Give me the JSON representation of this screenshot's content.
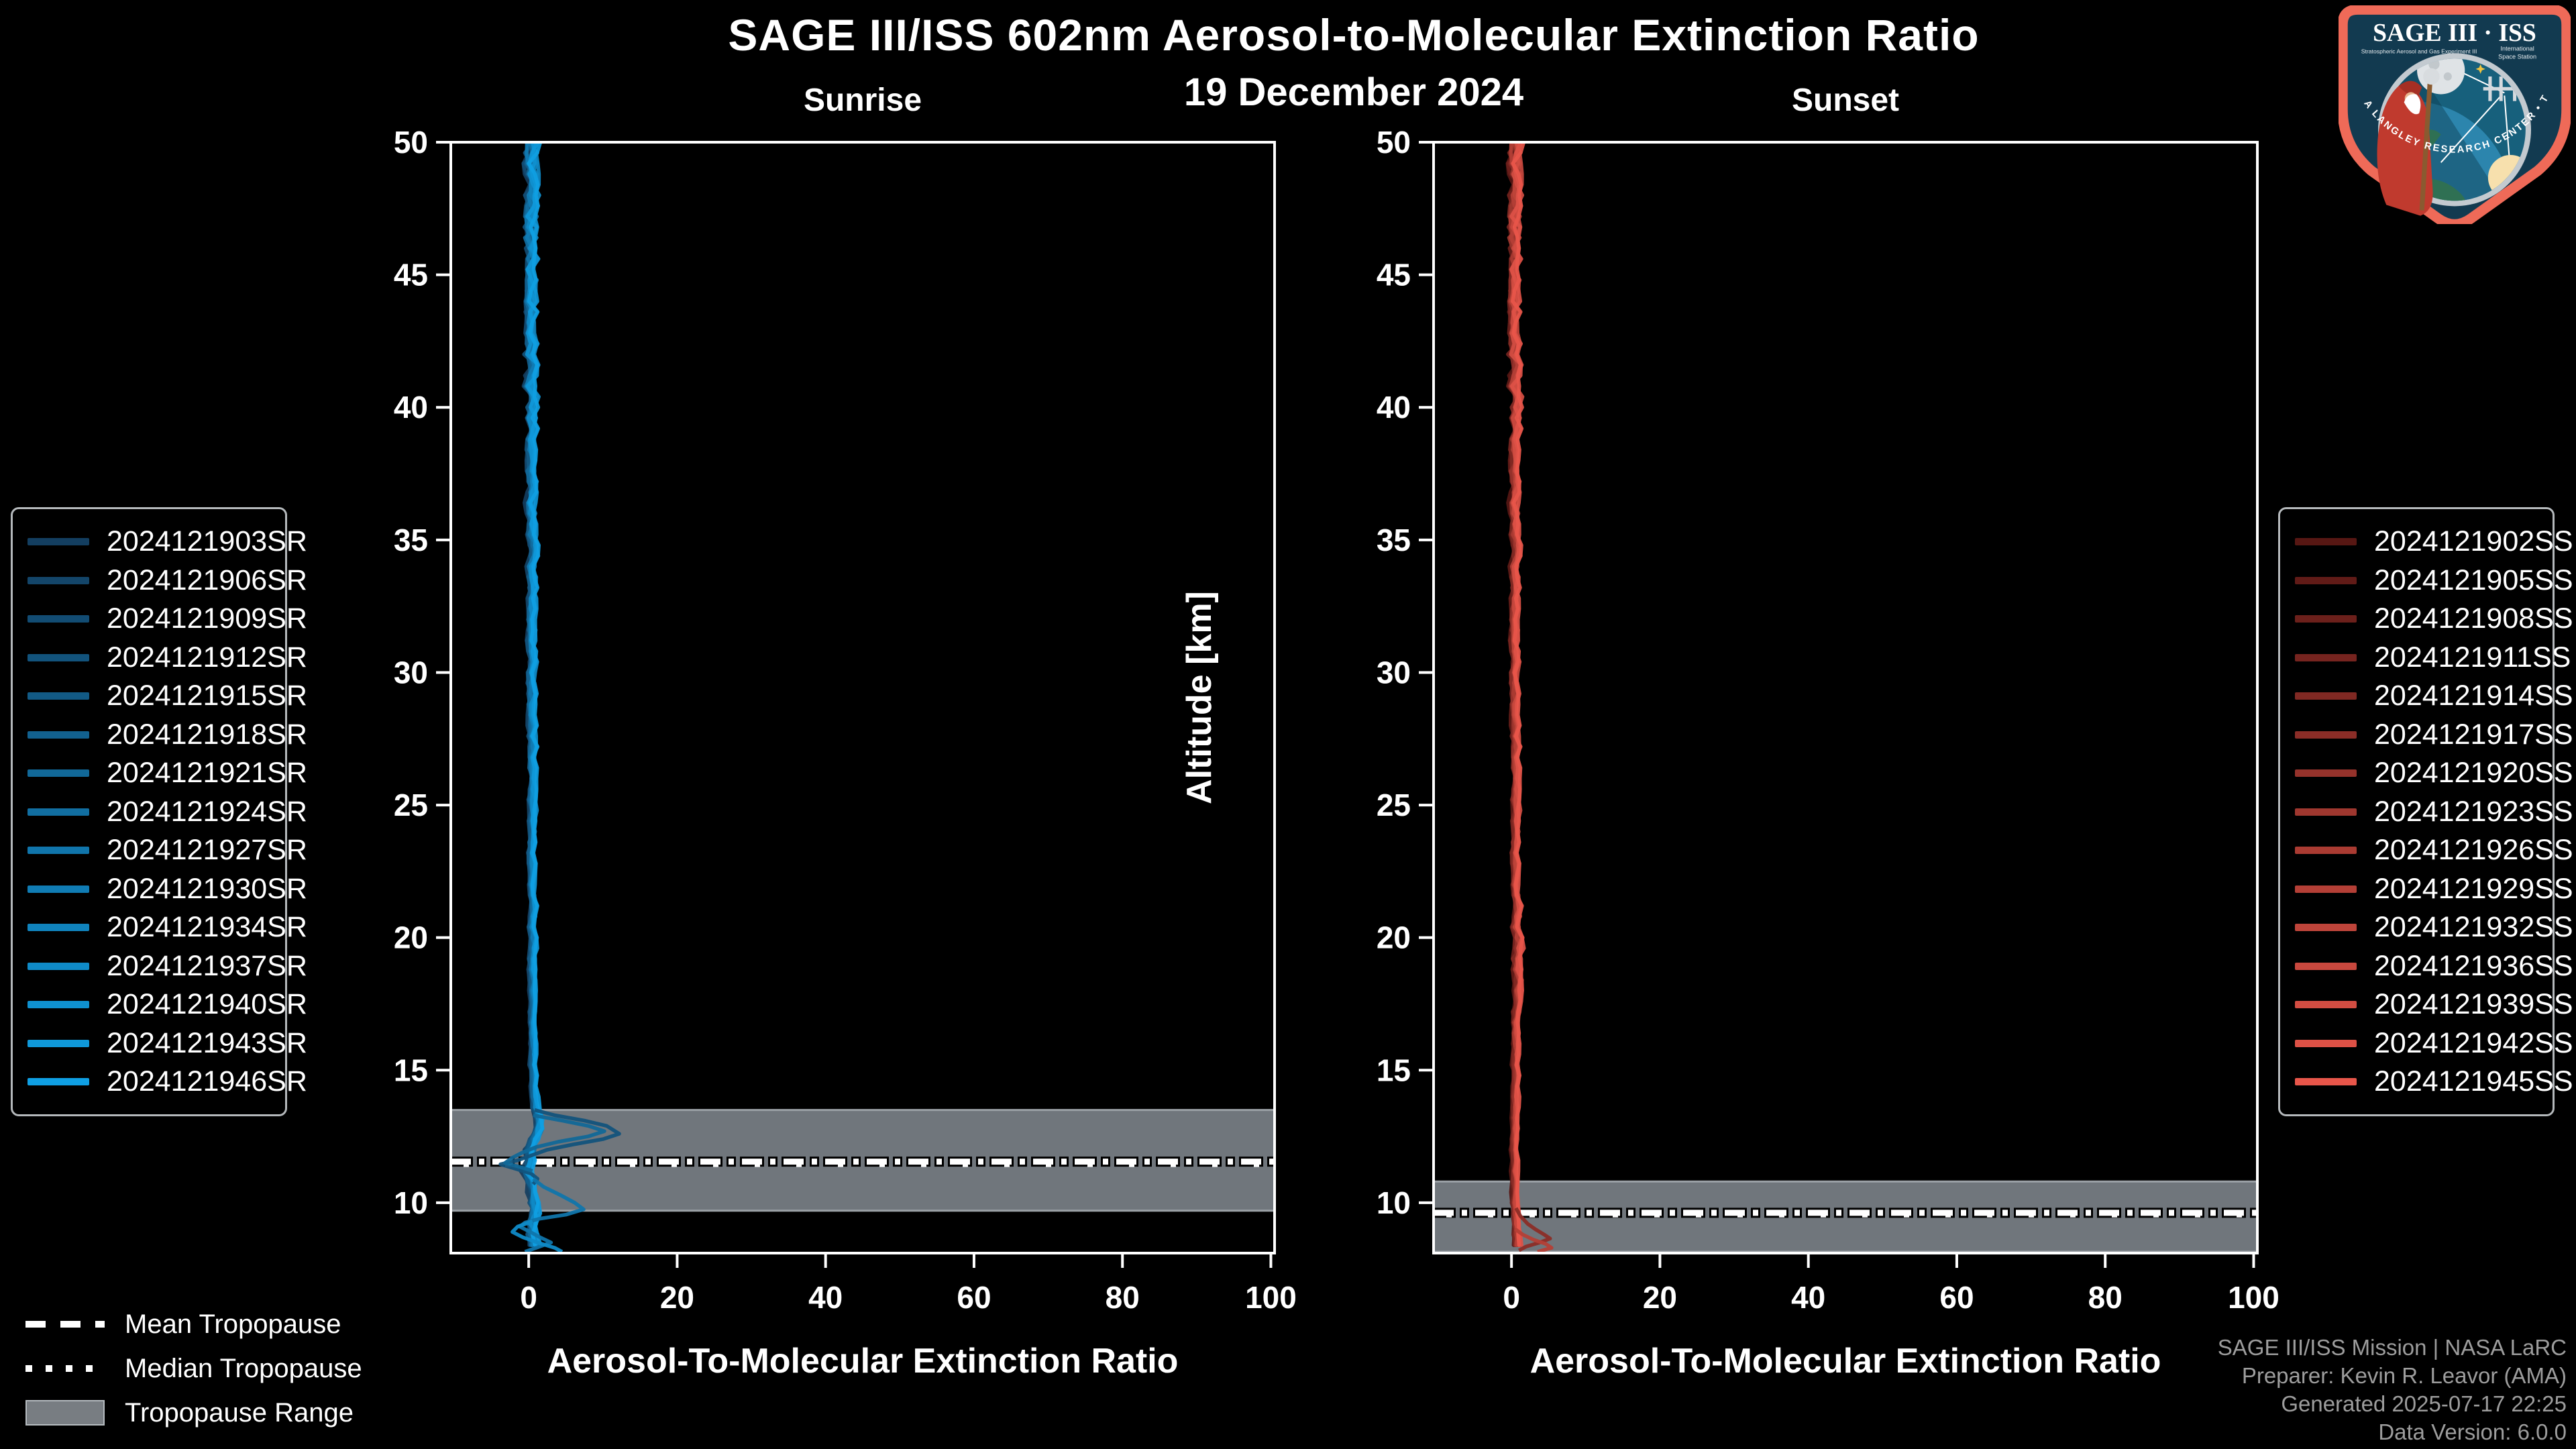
{
  "header": {
    "title": "SAGE III/ISS 602nm Aerosol-to-Molecular Extinction Ratio",
    "date": "19 December 2024"
  },
  "tropopause_legend": {
    "mean": "Mean Tropopause",
    "median": "Median Tropopause",
    "range": "Tropopause Range"
  },
  "credits": {
    "line1": "SAGE III/ISS Mission | NASA LaRC",
    "line2": "Preparer: Kevin R. Leavor (AMA)",
    "line3": "Generated 2025-07-17 22:25",
    "line4": "Data Version: 6.0.0"
  },
  "logo": {
    "title": "SAGE III · ISS",
    "subtitle_left": "Stratospheric Aerosol and Gas Experiment III",
    "subtitle_right_line1": "International",
    "subtitle_right_line2": "Space Station",
    "ring_text": "BALL • NASA LANGLEY RESEARCH CENTER • TAS-I • ESA",
    "colors": {
      "border": "#ef6a58",
      "field": "#123a50",
      "sky": "#17607c",
      "ring": "#c3cad0",
      "earth_ocean": "#2c85ad",
      "earth_land": "#4b9a55",
      "sun": "#f7e0ad",
      "moon": "#dfe3e6",
      "robe": "#c03a2e"
    }
  },
  "chart_data": [
    {
      "type": "line",
      "panel": "sunrise",
      "title": "Sunrise",
      "xlabel": "Aerosol-To-Molecular Extinction Ratio",
      "ylabel": "Altitude [km]",
      "xlim": [
        -10.5,
        100.5
      ],
      "ylim": [
        8.1,
        50
      ],
      "xticks": [
        0,
        20,
        40,
        60,
        80,
        100
      ],
      "yticks": [
        10,
        15,
        20,
        25,
        30,
        35,
        40,
        45,
        50
      ],
      "grid": false,
      "legend_position": "outside-left",
      "line_color_range": [
        "#133e60",
        "#0f9fe3"
      ],
      "series": [
        {
          "label": "2024121903SR",
          "color": "#133e60"
        },
        {
          "label": "2024121906SR",
          "color": "#134569"
        },
        {
          "label": "2024121909SR",
          "color": "#124c73"
        },
        {
          "label": "2024121912SR",
          "color": "#12537c"
        },
        {
          "label": "2024121915SR",
          "color": "#125a85"
        },
        {
          "label": "2024121918SR",
          "color": "#12618f"
        },
        {
          "label": "2024121921SR",
          "color": "#116898"
        },
        {
          "label": "2024121924SR",
          "color": "#116ea1"
        },
        {
          "label": "2024121927SR",
          "color": "#1075ab"
        },
        {
          "label": "2024121930SR",
          "color": "#107cb4"
        },
        {
          "label": "2024121934SR",
          "color": "#1083bd"
        },
        {
          "label": "2024121937SR",
          "color": "#0f8ac7"
        },
        {
          "label": "2024121940SR",
          "color": "#0f91d0"
        },
        {
          "label": "2024121943SR",
          "color": "#0f98d9"
        },
        {
          "label": "2024121946SR",
          "color": "#0f9fe3"
        }
      ],
      "center_profile": [
        [
          50,
          0.3
        ],
        [
          48,
          0.4
        ],
        [
          46,
          0.3
        ],
        [
          44,
          0.45
        ],
        [
          42,
          0.35
        ],
        [
          40,
          0.3
        ],
        [
          38,
          0.4
        ],
        [
          36,
          0.45
        ],
        [
          34,
          0.5
        ],
        [
          32,
          0.45
        ],
        [
          30,
          0.5
        ],
        [
          28,
          0.45
        ],
        [
          26,
          0.4
        ],
        [
          24,
          0.45
        ],
        [
          22,
          0.5
        ],
        [
          20,
          0.55
        ],
        [
          18,
          0.55
        ],
        [
          16,
          0.6
        ],
        [
          14.5,
          0.6
        ],
        [
          13.6,
          0.9
        ],
        [
          13.1,
          1.6
        ],
        [
          12.6,
          1.2
        ],
        [
          12.1,
          0.5
        ],
        [
          11.6,
          0.1
        ],
        [
          11.2,
          -0.3
        ],
        [
          10.8,
          0.2
        ],
        [
          10.3,
          0.6
        ],
        [
          9.8,
          1.0
        ],
        [
          9.4,
          0.5
        ],
        [
          9.0,
          0.2
        ],
        [
          8.6,
          0.5
        ],
        [
          8.1,
          0.9
        ]
      ],
      "spread_profile": [
        [
          50,
          1.15
        ],
        [
          46,
          1.0
        ],
        [
          42,
          0.8
        ],
        [
          38,
          0.65
        ],
        [
          34,
          0.55
        ],
        [
          30,
          0.5
        ],
        [
          26,
          0.42
        ],
        [
          22,
          0.38
        ],
        [
          18,
          0.33
        ],
        [
          14,
          0.3
        ],
        [
          13,
          0.6
        ],
        [
          12,
          0.7
        ],
        [
          11,
          0.7
        ],
        [
          10,
          0.7
        ],
        [
          9,
          0.8
        ],
        [
          8.1,
          1.0
        ]
      ],
      "features": [
        {
          "color_index": 3,
          "points": [
            [
              13.5,
              0.8
            ],
            [
              13.3,
              3.5
            ],
            [
              13.1,
              7.5
            ],
            [
              12.9,
              10.5
            ],
            [
              12.6,
              12.2
            ],
            [
              12.4,
              10.0
            ],
            [
              12.2,
              6.0
            ],
            [
              12.0,
              2.5
            ],
            [
              11.8,
              0.5
            ],
            [
              11.6,
              -1.5
            ],
            [
              11.45,
              -3.8
            ],
            [
              11.3,
              -2.0
            ],
            [
              11.1,
              0.3
            ],
            [
              10.9,
              1.2
            ],
            [
              10.7,
              0.6
            ]
          ]
        },
        {
          "color_index": 6,
          "points": [
            [
              13.3,
              0.6
            ],
            [
              13.1,
              4.5
            ],
            [
              12.9,
              8.0
            ],
            [
              12.7,
              10.2
            ],
            [
              12.5,
              8.0
            ],
            [
              12.3,
              4.0
            ],
            [
              12.1,
              1.0
            ],
            [
              11.9,
              -0.8
            ],
            [
              11.7,
              -2.2
            ],
            [
              11.5,
              -3.2
            ],
            [
              11.35,
              -1.2
            ],
            [
              11.2,
              0.5
            ]
          ]
        },
        {
          "color_index": 8,
          "points": [
            [
              10.9,
              0.6
            ],
            [
              10.6,
              2.0
            ],
            [
              10.3,
              4.2
            ],
            [
              10.0,
              6.2
            ],
            [
              9.75,
              7.4
            ],
            [
              9.55,
              5.0
            ],
            [
              9.4,
              1.5
            ],
            [
              9.25,
              -0.5
            ],
            [
              9.1,
              -1.2
            ],
            [
              8.9,
              0.2
            ],
            [
              8.7,
              1.5
            ],
            [
              8.5,
              3.0
            ],
            [
              8.3,
              1.0
            ],
            [
              8.15,
              -0.5
            ]
          ]
        },
        {
          "color_index": 11,
          "points": [
            [
              9.3,
              0.5
            ],
            [
              9.1,
              -1.5
            ],
            [
              8.9,
              -2.2
            ],
            [
              8.7,
              -0.8
            ],
            [
              8.5,
              1.2
            ],
            [
              8.3,
              3.5
            ],
            [
              8.15,
              4.5
            ]
          ]
        }
      ],
      "tropopause": {
        "mean_km": 11.55,
        "median_km": 11.45,
        "range_km": [
          9.7,
          13.5
        ]
      }
    },
    {
      "type": "line",
      "panel": "sunset",
      "title": "Sunset",
      "xlabel": "Aerosol-To-Molecular Extinction Ratio",
      "ylabel": "Altitude [km]",
      "xlim": [
        -10.5,
        100.5
      ],
      "ylim": [
        8.1,
        50
      ],
      "xticks": [
        0,
        20,
        40,
        60,
        80,
        100
      ],
      "yticks": [
        10,
        15,
        20,
        25,
        30,
        35,
        40,
        45,
        50
      ],
      "grid": false,
      "legend_position": "outside-right",
      "line_color_range": [
        "#571713",
        "#e8564a"
      ],
      "series": [
        {
          "label": "2024121902SS",
          "color": "#571713"
        },
        {
          "label": "2024121905SS",
          "color": "#611b17"
        },
        {
          "label": "2024121908SS",
          "color": "#6c201b"
        },
        {
          "label": "2024121911SS",
          "color": "#76241f"
        },
        {
          "label": "2024121914SS",
          "color": "#802923"
        },
        {
          "label": "2024121917SS",
          "color": "#8b2d27"
        },
        {
          "label": "2024121920SS",
          "color": "#95322b"
        },
        {
          "label": "2024121923SS",
          "color": "#9f372f"
        },
        {
          "label": "2024121926SS",
          "color": "#aa3b32"
        },
        {
          "label": "2024121929SS",
          "color": "#b43f36"
        },
        {
          "label": "2024121932SS",
          "color": "#be443a"
        },
        {
          "label": "2024121936SS",
          "color": "#c8483e"
        },
        {
          "label": "2024121939SS",
          "color": "#d34d42"
        },
        {
          "label": "2024121942SS",
          "color": "#dd5146"
        },
        {
          "label": "2024121945SS",
          "color": "#e8564a"
        }
      ],
      "center_profile": [
        [
          50,
          0.45
        ],
        [
          48,
          0.5
        ],
        [
          46,
          0.4
        ],
        [
          44,
          0.5
        ],
        [
          42,
          0.45
        ],
        [
          40,
          0.5
        ],
        [
          38,
          0.45
        ],
        [
          36,
          0.5
        ],
        [
          34,
          0.5
        ],
        [
          32,
          0.45
        ],
        [
          30,
          0.5
        ],
        [
          28,
          0.5
        ],
        [
          26,
          0.5
        ],
        [
          24,
          0.55
        ],
        [
          22,
          0.6
        ],
        [
          20.5,
          0.75
        ],
        [
          19,
          0.95
        ],
        [
          18,
          0.9
        ],
        [
          17,
          0.7
        ],
        [
          16,
          0.6
        ],
        [
          14,
          0.5
        ],
        [
          12,
          0.45
        ],
        [
          11,
          0.4
        ],
        [
          10.4,
          0.45
        ],
        [
          9.8,
          0.5
        ],
        [
          9.2,
          0.55
        ],
        [
          8.7,
          0.7
        ],
        [
          8.1,
          0.8
        ]
      ],
      "spread_profile": [
        [
          50,
          1.05
        ],
        [
          46,
          0.9
        ],
        [
          42,
          0.75
        ],
        [
          38,
          0.6
        ],
        [
          34,
          0.5
        ],
        [
          30,
          0.45
        ],
        [
          26,
          0.4
        ],
        [
          22,
          0.42
        ],
        [
          20,
          0.55
        ],
        [
          18.5,
          0.6
        ],
        [
          17,
          0.45
        ],
        [
          15,
          0.32
        ],
        [
          12,
          0.28
        ],
        [
          10,
          0.3
        ],
        [
          9,
          0.35
        ],
        [
          8.1,
          0.5
        ]
      ],
      "features": [
        {
          "color_index": 5,
          "points": [
            [
              9.8,
              0.6
            ],
            [
              9.5,
              1.2
            ],
            [
              9.2,
              2.2
            ],
            [
              9.0,
              3.2
            ],
            [
              8.8,
              4.4
            ],
            [
              8.65,
              5.2
            ],
            [
              8.5,
              3.8
            ],
            [
              8.35,
              2.0
            ],
            [
              8.2,
              1.0
            ]
          ]
        },
        {
          "color_index": 9,
          "points": [
            [
              9.0,
              0.5
            ],
            [
              8.8,
              1.5
            ],
            [
              8.6,
              3.0
            ],
            [
              8.45,
              4.6
            ],
            [
              8.3,
              5.4
            ],
            [
              8.15,
              3.5
            ]
          ]
        }
      ],
      "tropopause": {
        "mean_km": 9.62,
        "median_km": 9.55,
        "range_km": [
          8.15,
          10.8
        ]
      }
    }
  ],
  "style_colors": {
    "band_fill": "#70767c",
    "band_edge": "#9ba1a6",
    "frame": "#ffffff",
    "tick_label": "#ffffff",
    "credit_text": "#9d9d9d"
  }
}
